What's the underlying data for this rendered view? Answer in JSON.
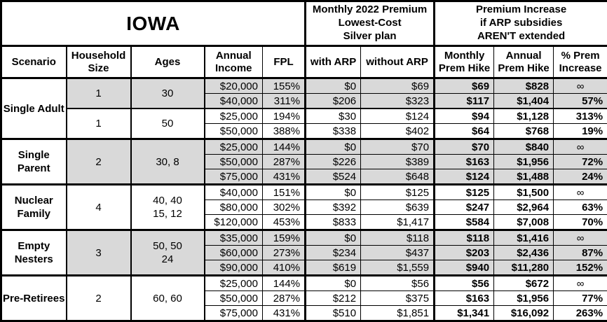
{
  "colors": {
    "shaded_row": "#d9d9d9",
    "border": "#000000",
    "background": "#ffffff"
  },
  "table_header": {
    "region_title": "IOWA",
    "premium_group_title": "Monthly 2022 Premium\nLowest-Cost\nSilver plan",
    "increase_group_title": "Premium Increase\nif ARP subsidies\nAREN'T extended",
    "columns": {
      "scenario": "Scenario",
      "household_size": "Household\nSize",
      "ages": "Ages",
      "annual_income": "Annual\nIncome",
      "fpl": "FPL",
      "with_arp": "with ARP",
      "without_arp": "without ARP",
      "monthly_hike": "Monthly\nPrem Hike",
      "annual_hike": "Annual\nPrem Hike",
      "pct_increase": "% Prem\nIncrease"
    }
  },
  "groups": [
    {
      "scenario": "Single Adult",
      "subgroups": [
        {
          "household_size": "1",
          "ages": "30",
          "shaded": true,
          "rows": [
            {
              "income": "$20,000",
              "fpl": "155%",
              "with_arp": "$0",
              "without_arp": "$69",
              "monthly_hike": "$69",
              "annual_hike": "$828",
              "pct_increase": "∞"
            },
            {
              "income": "$40,000",
              "fpl": "311%",
              "with_arp": "$206",
              "without_arp": "$323",
              "monthly_hike": "$117",
              "annual_hike": "$1,404",
              "pct_increase": "57%"
            }
          ]
        },
        {
          "household_size": "1",
          "ages": "50",
          "shaded": false,
          "rows": [
            {
              "income": "$25,000",
              "fpl": "194%",
              "with_arp": "$30",
              "without_arp": "$124",
              "monthly_hike": "$94",
              "annual_hike": "$1,128",
              "pct_increase": "313%"
            },
            {
              "income": "$50,000",
              "fpl": "388%",
              "with_arp": "$338",
              "without_arp": "$402",
              "monthly_hike": "$64",
              "annual_hike": "$768",
              "pct_increase": "19%"
            }
          ]
        }
      ]
    },
    {
      "scenario": "Single Parent",
      "subgroups": [
        {
          "household_size": "2",
          "ages": "30, 8",
          "shaded": true,
          "rows": [
            {
              "income": "$25,000",
              "fpl": "144%",
              "with_arp": "$0",
              "without_arp": "$70",
              "monthly_hike": "$70",
              "annual_hike": "$840",
              "pct_increase": "∞"
            },
            {
              "income": "$50,000",
              "fpl": "287%",
              "with_arp": "$226",
              "without_arp": "$389",
              "monthly_hike": "$163",
              "annual_hike": "$1,956",
              "pct_increase": "72%"
            },
            {
              "income": "$75,000",
              "fpl": "431%",
              "with_arp": "$524",
              "without_arp": "$648",
              "monthly_hike": "$124",
              "annual_hike": "$1,488",
              "pct_increase": "24%"
            }
          ]
        }
      ]
    },
    {
      "scenario": "Nuclear Family",
      "subgroups": [
        {
          "household_size": "4",
          "ages": "40, 40\n15, 12",
          "shaded": false,
          "rows": [
            {
              "income": "$40,000",
              "fpl": "151%",
              "with_arp": "$0",
              "without_arp": "$125",
              "monthly_hike": "$125",
              "annual_hike": "$1,500",
              "pct_increase": "∞"
            },
            {
              "income": "$80,000",
              "fpl": "302%",
              "with_arp": "$392",
              "without_arp": "$639",
              "monthly_hike": "$247",
              "annual_hike": "$2,964",
              "pct_increase": "63%"
            },
            {
              "income": "$120,000",
              "fpl": "453%",
              "with_arp": "$833",
              "without_arp": "$1,417",
              "monthly_hike": "$584",
              "annual_hike": "$7,008",
              "pct_increase": "70%"
            }
          ]
        }
      ]
    },
    {
      "scenario": "Empty Nesters",
      "subgroups": [
        {
          "household_size": "3",
          "ages": "50, 50\n24",
          "shaded": true,
          "rows": [
            {
              "income": "$35,000",
              "fpl": "159%",
              "with_arp": "$0",
              "without_arp": "$118",
              "monthly_hike": "$118",
              "annual_hike": "$1,416",
              "pct_increase": "∞"
            },
            {
              "income": "$60,000",
              "fpl": "273%",
              "with_arp": "$234",
              "without_arp": "$437",
              "monthly_hike": "$203",
              "annual_hike": "$2,436",
              "pct_increase": "87%"
            },
            {
              "income": "$90,000",
              "fpl": "410%",
              "with_arp": "$619",
              "without_arp": "$1,559",
              "monthly_hike": "$940",
              "annual_hike": "$11,280",
              "pct_increase": "152%"
            }
          ]
        }
      ]
    },
    {
      "scenario": "Pre-Retirees",
      "subgroups": [
        {
          "household_size": "2",
          "ages": "60, 60",
          "shaded": false,
          "rows": [
            {
              "income": "$25,000",
              "fpl": "144%",
              "with_arp": "$0",
              "without_arp": "$56",
              "monthly_hike": "$56",
              "annual_hike": "$672",
              "pct_increase": "∞"
            },
            {
              "income": "$50,000",
              "fpl": "287%",
              "with_arp": "$212",
              "without_arp": "$375",
              "monthly_hike": "$163",
              "annual_hike": "$1,956",
              "pct_increase": "77%"
            },
            {
              "income": "$75,000",
              "fpl": "431%",
              "with_arp": "$510",
              "without_arp": "$1,851",
              "monthly_hike": "$1,341",
              "annual_hike": "$16,092",
              "pct_increase": "263%"
            }
          ]
        }
      ]
    }
  ]
}
